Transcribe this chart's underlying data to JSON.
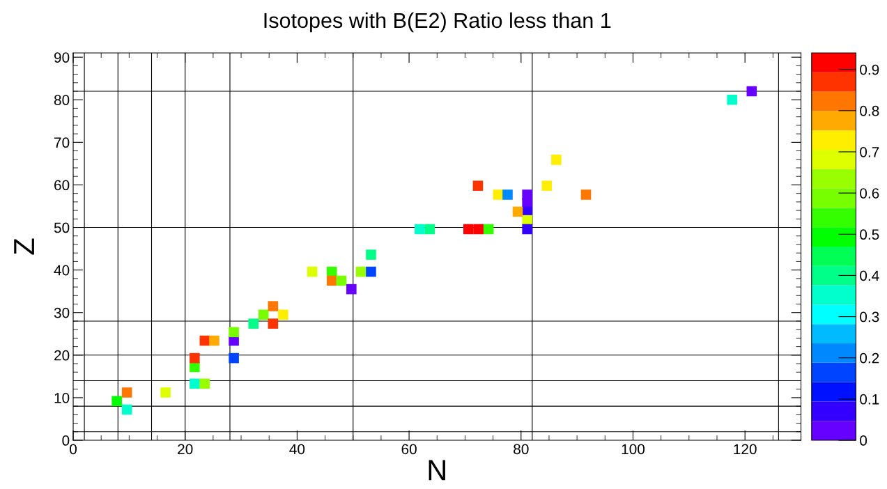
{
  "chart_data": {
    "type": "scatter",
    "title": "Isotopes with B(E2) Ratio less than 1",
    "xlabel": "N",
    "ylabel": "Z",
    "marker": "square",
    "x": [
      7.8,
      9.6,
      9.6,
      16.5,
      21.7,
      23.5,
      21.7,
      21.7,
      23.5,
      25.2,
      28.7,
      28.7,
      28.7,
      32.2,
      34.0,
      35.7,
      35.7,
      37.5,
      42.7,
      46.2,
      46.2,
      47.9,
      49.7,
      51.4,
      53.2,
      53.2,
      61.9,
      63.7,
      70.6,
      72.4,
      74.2,
      72.3,
      75.9,
      77.6,
      81.1,
      81.1,
      81.1,
      81.1,
      81.1,
      79.4,
      84.6,
      86.3,
      91.6,
      117.7,
      121.2
    ],
    "values": [
      9.2,
      11.2,
      7.2,
      11.2,
      13.3,
      13.3,
      17.2,
      19.3,
      23.4,
      23.4,
      23.4,
      25.4,
      19.3,
      27.4,
      29.5,
      31.5,
      27.4,
      29.5,
      39.6,
      39.6,
      37.5,
      37.5,
      35.5,
      39.6,
      39.6,
      43.6,
      49.6,
      49.6,
      49.6,
      49.6,
      49.6,
      59.8,
      57.7,
      57.7,
      57.7,
      55.7,
      53.7,
      51.7,
      49.6,
      53.7,
      59.8,
      65.9,
      57.7,
      80.0,
      82.0
    ],
    "cvalues": [
      0.49,
      0.82,
      0.35,
      0.68,
      0.35,
      0.63,
      0.54,
      0.87,
      0.87,
      0.78,
      0.02,
      0.59,
      0.16,
      0.4,
      0.59,
      0.82,
      0.87,
      0.73,
      0.68,
      0.54,
      0.82,
      0.59,
      0.02,
      0.63,
      0.16,
      0.4,
      0.35,
      0.4,
      0.92,
      0.92,
      0.54,
      0.87,
      0.73,
      0.21,
      0.02,
      0.02,
      0.07,
      0.68,
      0.07,
      0.78,
      0.73,
      0.73,
      0.82,
      0.35,
      0.02
    ],
    "xlim": [
      0,
      130
    ],
    "xticks": [
      0,
      20,
      40,
      60,
      80,
      100,
      120
    ],
    "ylim": [
      0,
      91
    ],
    "yticks": [
      0,
      10,
      20,
      30,
      40,
      50,
      60,
      70,
      80,
      90
    ],
    "clim": [
      0,
      0.94
    ],
    "cticks": [
      0,
      0.1,
      0.2,
      0.3,
      0.4,
      0.5,
      0.6,
      0.7,
      0.8,
      0.9
    ],
    "ref_lines": [
      {
        "axis": "x",
        "value": 2,
        "color": "#000000"
      },
      {
        "axis": "x",
        "value": 8,
        "color": "#000000"
      },
      {
        "axis": "x",
        "value": 14,
        "color": "#000000"
      },
      {
        "axis": "x",
        "value": 20,
        "color": "#000000"
      },
      {
        "axis": "x",
        "value": 28,
        "color": "#000000"
      },
      {
        "axis": "x",
        "value": 50,
        "color": "#000000"
      },
      {
        "axis": "x",
        "value": 82,
        "color": "#000000"
      },
      {
        "axis": "x",
        "value": 126,
        "color": "#000000"
      },
      {
        "axis": "y",
        "value": 2,
        "color": "#000000"
      },
      {
        "axis": "y",
        "value": 8,
        "color": "#000000"
      },
      {
        "axis": "y",
        "value": 14,
        "color": "#000000"
      },
      {
        "axis": "y",
        "value": 20,
        "color": "#000000"
      },
      {
        "axis": "y",
        "value": 28,
        "color": "#000000"
      },
      {
        "axis": "y",
        "value": 50,
        "color": "#000000"
      },
      {
        "axis": "y",
        "value": 82,
        "color": "#000000"
      }
    ],
    "grid": false,
    "legend": false
  }
}
